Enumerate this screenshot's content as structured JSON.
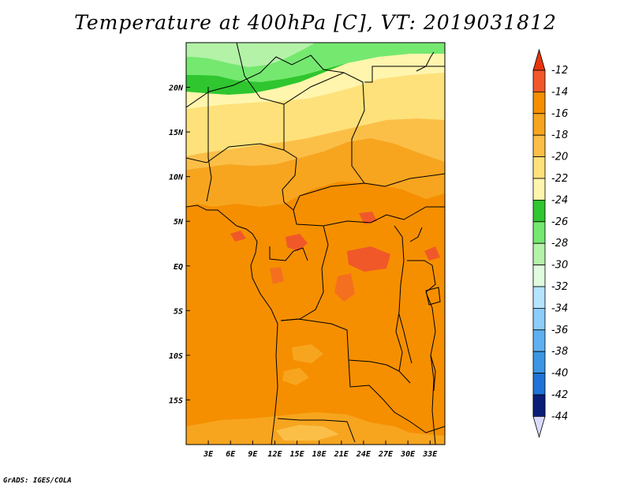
{
  "title": "Temperature at 400hPa [C], VT: 2019031812",
  "credit": "GrADS: IGES/COLA",
  "map": {
    "lon_range": [
      0,
      35
    ],
    "lat_range": [
      -20,
      25
    ],
    "lon_ticks": [
      "3E",
      "6E",
      "9E",
      "12E",
      "15E",
      "18E",
      "21E",
      "24E",
      "27E",
      "30E",
      "33E"
    ],
    "lat_ticks": [
      "20N",
      "15N",
      "10N",
      "5N",
      "EQ",
      "5S",
      "10S",
      "15S"
    ]
  },
  "colorbar": {
    "labels": [
      "-12",
      "-14",
      "-16",
      "-18",
      "-20",
      "-22",
      "-24",
      "-26",
      "-28",
      "-30",
      "-32",
      "-34",
      "-36",
      "-38",
      "-40",
      "-42",
      "-44"
    ],
    "colors": [
      "#f0582a",
      "#f58f00",
      "#f7a51f",
      "#fbbf48",
      "#fee17a",
      "#fff5ad",
      "#2fc62f",
      "#75e870",
      "#b4f2a8",
      "#e0fbe0",
      "#b5e4ff",
      "#8ccdfa",
      "#5fb0f0",
      "#3c96e4",
      "#1f73d6",
      "#1550b8",
      "#0a1e78"
    ],
    "top_color": "#e8350c",
    "bottom_color": "#dadbff"
  }
}
